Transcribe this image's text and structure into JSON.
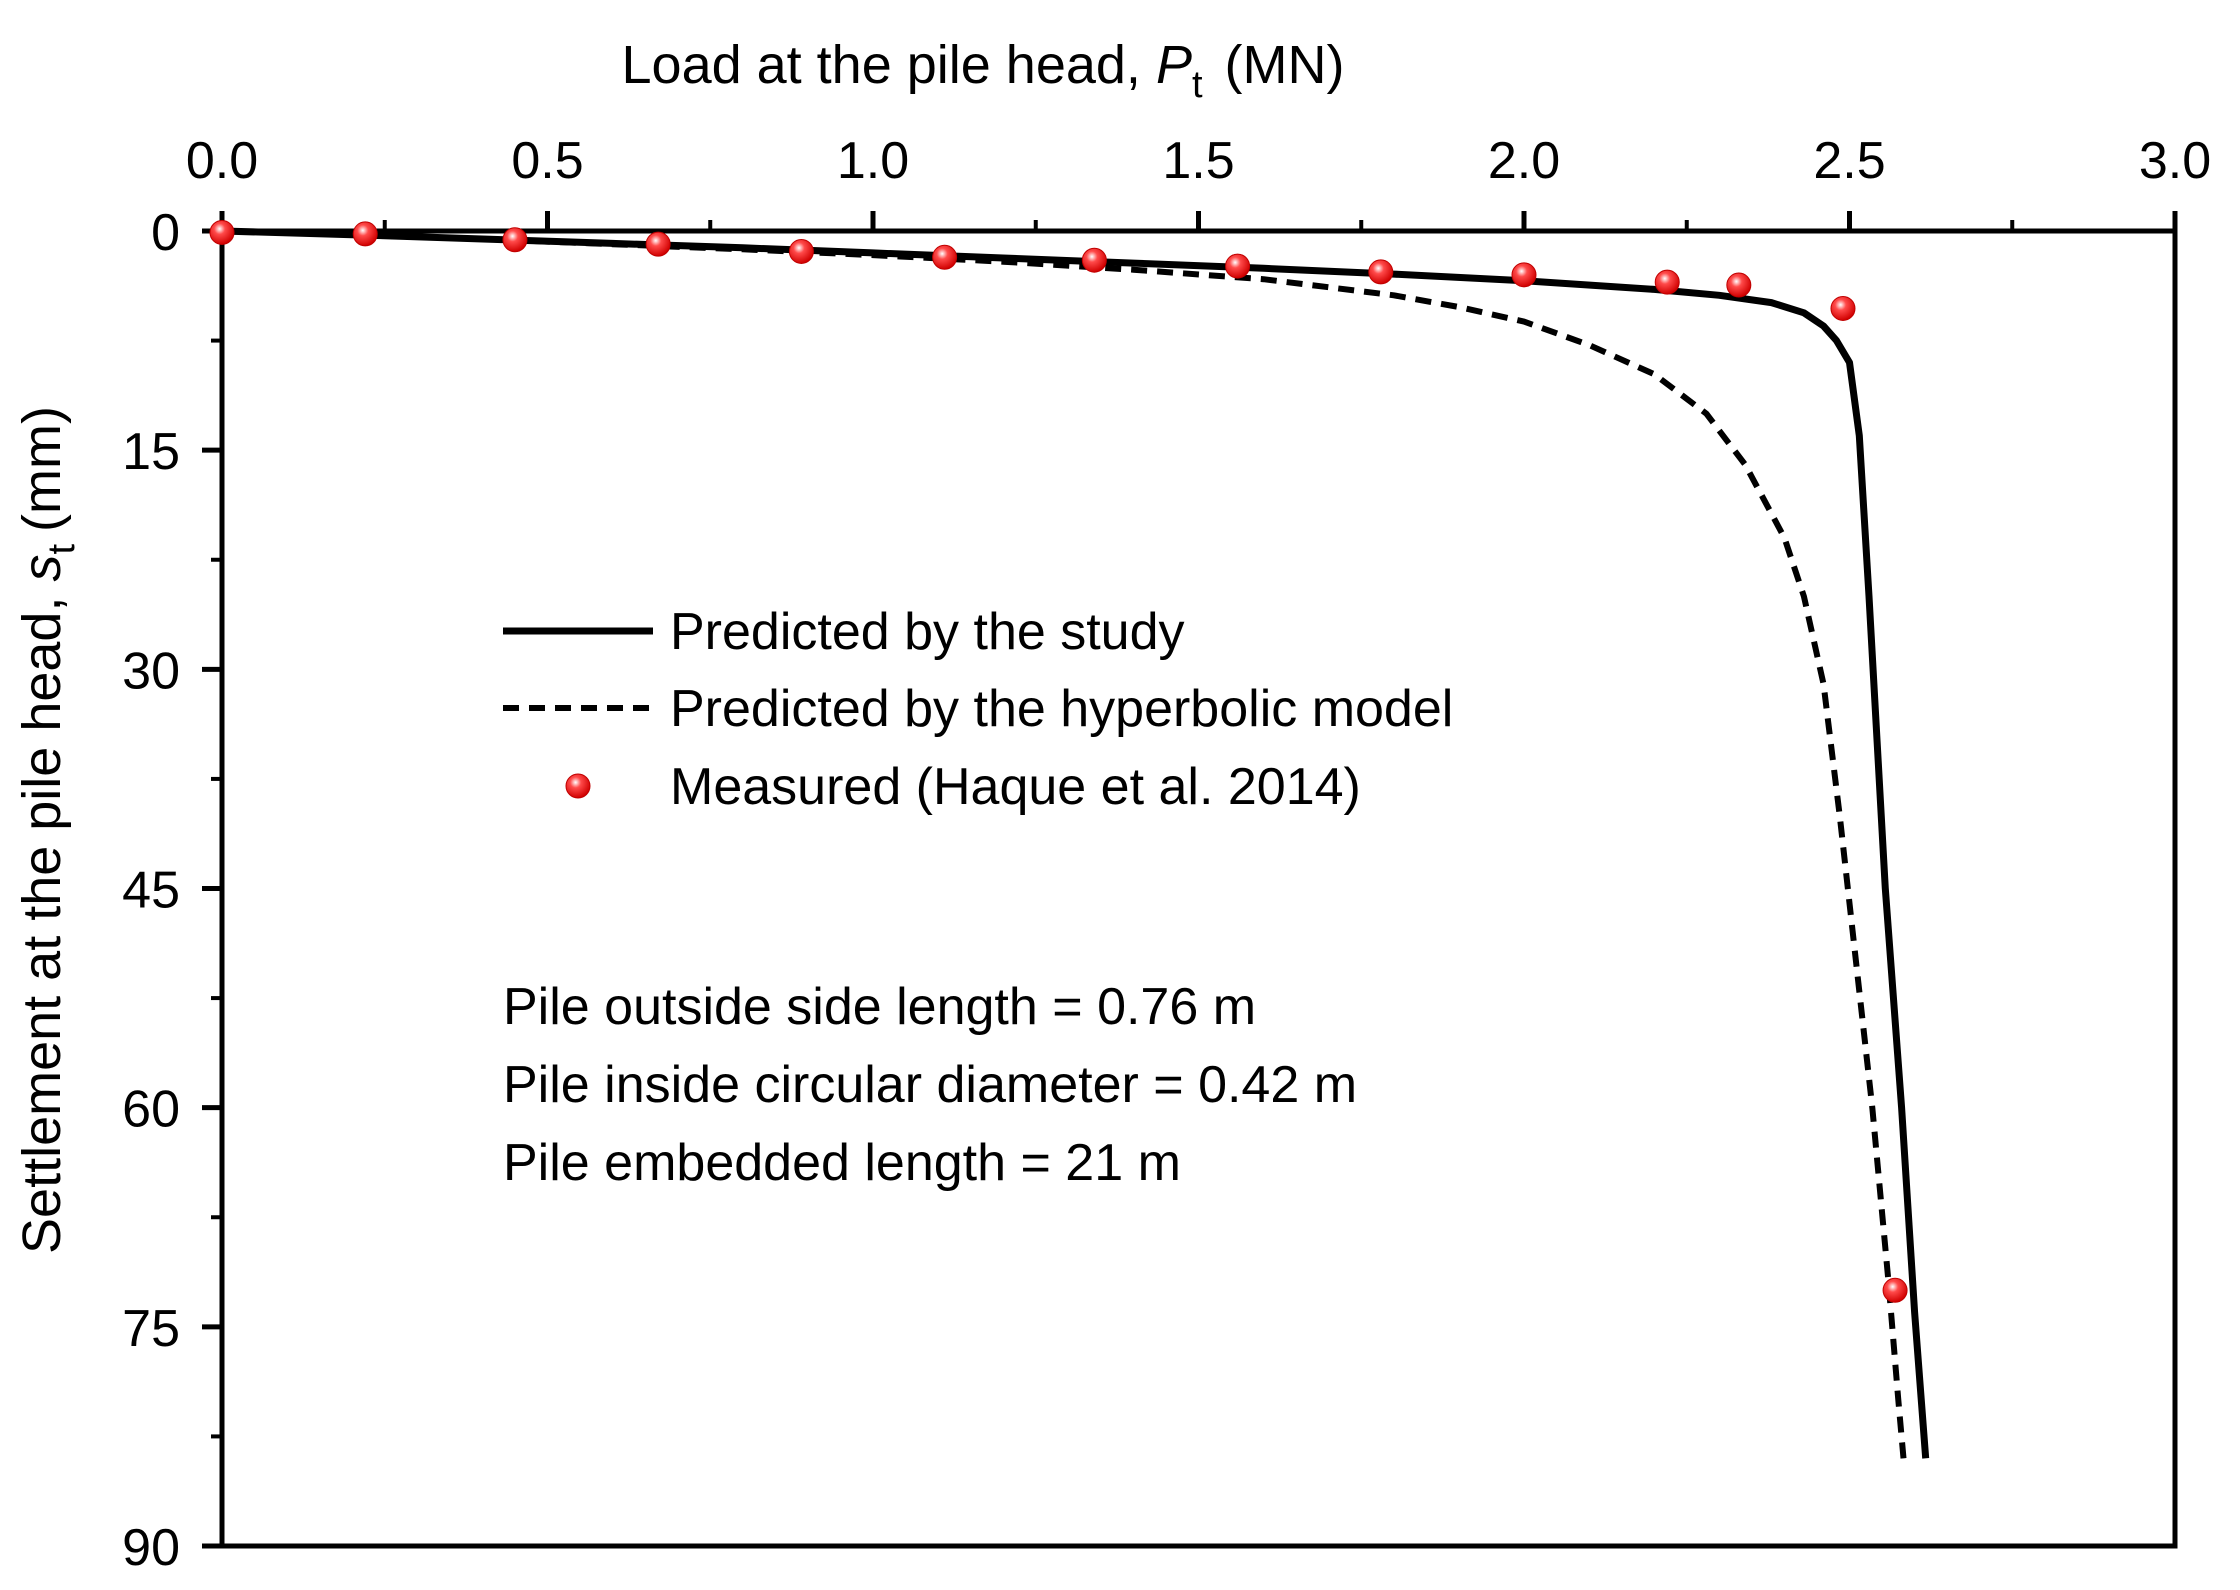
{
  "chart_data": {
    "type": "line",
    "title": "",
    "xlabel": {
      "main": "Load at the pile head, ",
      "var": "P",
      "sub": "t",
      "unit": "(MN)"
    },
    "ylabel": {
      "main": "Settlement at the pile head, ",
      "var": "s",
      "sub": "t",
      "unit": "(mm)"
    },
    "x_axis_position": "top",
    "y_inverted": true,
    "xlim": [
      0,
      3.0
    ],
    "ylim": [
      0,
      90
    ],
    "xticks": [
      "0.0",
      "0.5",
      "1.0",
      "1.5",
      "2.0",
      "2.5",
      "3.0"
    ],
    "yticks": [
      "0",
      "15",
      "30",
      "45",
      "60",
      "75",
      "90"
    ],
    "grid": false,
    "legend_position": "center-left",
    "series": [
      {
        "name": "Predicted by the study",
        "style": "solid",
        "color": "#000000",
        "points": [
          [
            0,
            0
          ],
          [
            0.2,
            0.25
          ],
          [
            0.4,
            0.55
          ],
          [
            0.6,
            0.85
          ],
          [
            0.8,
            1.15
          ],
          [
            1.0,
            1.5
          ],
          [
            1.2,
            1.85
          ],
          [
            1.4,
            2.2
          ],
          [
            1.6,
            2.55
          ],
          [
            1.8,
            2.95
          ],
          [
            2.0,
            3.4
          ],
          [
            2.2,
            4.0
          ],
          [
            2.3,
            4.4
          ],
          [
            2.38,
            4.9
          ],
          [
            2.43,
            5.6
          ],
          [
            2.46,
            6.5
          ],
          [
            2.48,
            7.5
          ],
          [
            2.5,
            9.0
          ],
          [
            2.515,
            14
          ],
          [
            2.53,
            25
          ],
          [
            2.555,
            45
          ],
          [
            2.58,
            60
          ],
          [
            2.6,
            74
          ],
          [
            2.617,
            84
          ]
        ]
      },
      {
        "name": "Predicted by the hyperbolic model",
        "style": "dashed",
        "color": "#000000",
        "points": [
          [
            0,
            0
          ],
          [
            0.2,
            0.25
          ],
          [
            0.4,
            0.55
          ],
          [
            0.6,
            0.9
          ],
          [
            0.8,
            1.25
          ],
          [
            1.0,
            1.65
          ],
          [
            1.2,
            2.1
          ],
          [
            1.4,
            2.65
          ],
          [
            1.6,
            3.3
          ],
          [
            1.8,
            4.4
          ],
          [
            1.9,
            5.2
          ],
          [
            2.0,
            6.2
          ],
          [
            2.1,
            7.8
          ],
          [
            2.2,
            9.8
          ],
          [
            2.28,
            12.5
          ],
          [
            2.34,
            16
          ],
          [
            2.4,
            21
          ],
          [
            2.43,
            25
          ],
          [
            2.46,
            31
          ],
          [
            2.485,
            40
          ],
          [
            2.51,
            50
          ],
          [
            2.535,
            60
          ],
          [
            2.56,
            72
          ],
          [
            2.575,
            80
          ],
          [
            2.583,
            84
          ]
        ]
      },
      {
        "name": "Measured (Haque et al. 2014)",
        "style": "marker",
        "color": "#ff0000",
        "points": [
          [
            0,
            0.1
          ],
          [
            0.22,
            0.2
          ],
          [
            0.45,
            0.6
          ],
          [
            0.67,
            0.9
          ],
          [
            0.89,
            1.4
          ],
          [
            1.11,
            1.8
          ],
          [
            1.34,
            2.0
          ],
          [
            1.56,
            2.4
          ],
          [
            1.78,
            2.8
          ],
          [
            2.0,
            3.0
          ],
          [
            2.22,
            3.5
          ],
          [
            2.33,
            3.7
          ],
          [
            2.49,
            5.3
          ],
          [
            2.57,
            72.5
          ]
        ]
      }
    ],
    "annotations": [
      "Pile outside side length = 0.76 m",
      "Pile inside circular diameter = 0.42 m",
      "Pile embedded length = 21 m"
    ]
  }
}
